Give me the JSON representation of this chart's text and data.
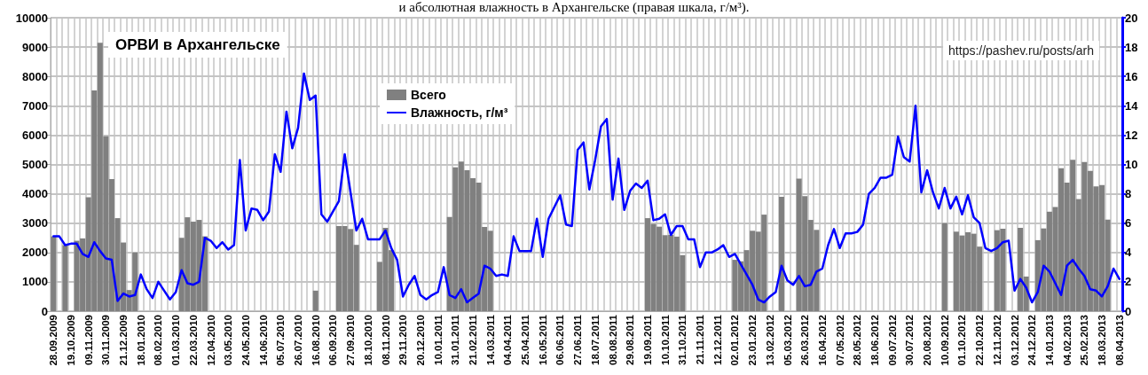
{
  "chart_data": {
    "type": "bar",
    "title": "ОРВИ в Архангельске",
    "subtitle": "и абсолютная влажность в Архангельске (правая шкала, г/м³).",
    "annotations": [
      "https://pashev.ru/posts/arh"
    ],
    "categories": [
      "28.09.2009",
      null,
      null,
      "19.10.2009",
      null,
      null,
      "09.11.2009",
      null,
      null,
      "30.11.2009",
      null,
      null,
      "21.12.2009",
      null,
      null,
      "18.01.2010",
      null,
      null,
      "08.02.2010",
      null,
      null,
      "01.03.2010",
      null,
      null,
      "22.03.2010",
      null,
      null,
      "12.04.2010",
      null,
      null,
      "03.05.2010",
      null,
      null,
      "24.05.2010",
      null,
      null,
      "14.06.2010",
      null,
      null,
      "05.07.2010",
      null,
      null,
      "26.07.2010",
      null,
      null,
      "16.08.2010",
      null,
      null,
      "06.09.2010",
      null,
      null,
      "27.09.2010",
      null,
      null,
      "18.10.2010",
      null,
      null,
      "08.11.2010",
      null,
      null,
      "29.11.2010",
      null,
      null,
      "20.12.2010",
      null,
      null,
      "10.01.2011",
      null,
      null,
      "31.01.2011",
      null,
      null,
      "21.02.2011",
      null,
      null,
      "14.03.2011",
      null,
      null,
      "04.04.2011",
      null,
      null,
      "25.04.2011",
      null,
      null,
      "16.05.2011",
      null,
      null,
      "06.06.2011",
      null,
      null,
      "27.06.2011",
      null,
      null,
      "18.07.2011",
      null,
      null,
      "08.08.2011",
      null,
      null,
      "29.08.2011",
      null,
      null,
      "19.09.2011",
      null,
      null,
      "10.10.2011",
      null,
      null,
      "31.10.2011",
      null,
      null,
      "21.11.2011",
      null,
      null,
      "12.12.2011",
      null,
      null,
      "02.01.2012",
      null,
      null,
      "23.01.2012",
      null,
      null,
      "13.02.2012",
      null,
      null,
      "05.03.2012",
      null,
      null,
      "26.03.2012",
      null,
      null,
      "16.04.2012",
      null,
      null,
      "07.05.2012",
      null,
      null,
      "28.05.2012",
      null,
      null,
      "18.06.2012",
      null,
      null,
      "09.07.2012",
      null,
      null,
      "30.07.2012",
      null,
      null,
      "20.08.2012",
      null,
      null,
      "10.09.2012",
      null,
      null,
      "01.10.2012",
      null,
      null,
      "22.10.2012",
      null,
      null,
      "12.11.2012",
      null,
      null,
      "03.12.2012",
      null,
      null,
      "24.12.2012",
      null,
      null,
      "14.01.2013",
      null,
      null,
      "04.02.2013",
      null,
      null,
      "25.02.2013",
      null,
      null,
      "18.03.2013",
      null,
      null,
      "08.04.2013"
    ],
    "series": [
      {
        "name": "Всего",
        "color": "#808080",
        "values": [
          2550,
          null,
          2250,
          null,
          2400,
          2480,
          3880,
          7520,
          9150,
          5960,
          4500,
          3170,
          2340,
          720,
          2000,
          null,
          null,
          null,
          null,
          null,
          null,
          null,
          2500,
          3200,
          3050,
          3110,
          2550,
          null,
          null,
          null,
          null,
          null,
          null,
          null,
          null,
          null,
          null,
          null,
          null,
          null,
          null,
          null,
          null,
          null,
          null,
          700,
          null,
          null,
          null,
          2900,
          2900,
          2800,
          2260,
          null,
          null,
          null,
          1680,
          2840,
          2080,
          null,
          null,
          null,
          null,
          null,
          null,
          null,
          null,
          null,
          3210,
          4900,
          5100,
          4800,
          4530,
          4380,
          2870,
          2740,
          null,
          null,
          null,
          null,
          null,
          null,
          null,
          null,
          null,
          null,
          null,
          null,
          null,
          null,
          null,
          null,
          null,
          null,
          null,
          null,
          null,
          null,
          null,
          null,
          null,
          null,
          3170,
          2970,
          2880,
          2590,
          2600,
          2540,
          1910,
          null,
          null,
          null,
          null,
          null,
          null,
          null,
          null,
          1750,
          1700,
          2080,
          2740,
          2710,
          3290,
          null,
          null,
          3900,
          null,
          null,
          4520,
          3920,
          3110,
          2770,
          null,
          null,
          null,
          null,
          null,
          null,
          null,
          null,
          null,
          null,
          null,
          null,
          null,
          null,
          null,
          null,
          null,
          null,
          null,
          null,
          null,
          3000,
          null,
          2710,
          2580,
          2690,
          2640,
          2200,
          null,
          null,
          2760,
          2810,
          null,
          null,
          2840,
          1180,
          null,
          2420,
          2820,
          3390,
          3550,
          4870,
          4380,
          5160,
          3820,
          5080,
          4780,
          4250,
          4300,
          3120,
          null,
          null
        ]
      },
      {
        "name": "Влажность, г/м³",
        "type": "line",
        "axis": "y2",
        "color": "#0000ff",
        "values": [
          5.1,
          5.1,
          4.5,
          4.6,
          4.6,
          3.9,
          3.7,
          4.7,
          4.1,
          3.6,
          3.5,
          0.7,
          1.2,
          1.0,
          1.1,
          2.5,
          1.5,
          0.9,
          2.0,
          1.4,
          0.8,
          1.3,
          2.8,
          1.9,
          1.8,
          2.0,
          5.0,
          4.8,
          4.3,
          4.7,
          4.2,
          4.5,
          10.3,
          5.5,
          7.0,
          6.9,
          6.2,
          6.8,
          10.7,
          9.5,
          13.6,
          11.1,
          12.5,
          16.2,
          14.4,
          14.7,
          6.6,
          6.1,
          6.8,
          7.5,
          10.7,
          8.1,
          5.5,
          6.3,
          4.9,
          4.9,
          4.9,
          5.5,
          4.3,
          3.5,
          1.0,
          1.8,
          2.4,
          1.1,
          0.8,
          1.1,
          1.3,
          3.0,
          1.1,
          0.9,
          1.5,
          0.6,
          0.9,
          1.2,
          3.1,
          2.9,
          2.4,
          2.5,
          2.4,
          5.1,
          4.1,
          4.1,
          4.1,
          6.3,
          3.7,
          6.3,
          7.1,
          7.9,
          5.9,
          5.8,
          11.0,
          11.5,
          8.3,
          10.3,
          12.6,
          13.1,
          7.6,
          10.4,
          6.9,
          8.2,
          8.7,
          8.4,
          8.9,
          6.2,
          6.3,
          6.6,
          5.2,
          5.8,
          5.8,
          4.9,
          4.9,
          3.0,
          4.0,
          4.0,
          4.2,
          4.5,
          3.7,
          3.9,
          3.2,
          2.5,
          1.8,
          0.8,
          0.6,
          1.0,
          1.3,
          3.1,
          2.1,
          1.8,
          2.4,
          1.7,
          1.8,
          2.7,
          2.9,
          4.5,
          5.6,
          4.3,
          5.3,
          5.3,
          5.4,
          5.9,
          8.0,
          8.4,
          9.1,
          9.1,
          9.3,
          11.9,
          10.5,
          10.2,
          14.0,
          8.1,
          9.6,
          8.1,
          7.0,
          8.4,
          7.0,
          7.8,
          6.6,
          7.9,
          6.4,
          6.0,
          4.3,
          4.1,
          4.3,
          4.7,
          4.8,
          1.4,
          2.2,
          1.6,
          0.6,
          1.3,
          3.1,
          2.7,
          1.9,
          1.1,
          3.1,
          3.5,
          2.9,
          2.4,
          1.5,
          1.4,
          1.0,
          1.7,
          2.9,
          2.2
        ]
      }
    ],
    "ylim": [
      0,
      10000
    ],
    "yticks": [
      0,
      1000,
      2000,
      3000,
      4000,
      5000,
      6000,
      7000,
      8000,
      9000,
      10000
    ],
    "y2lim": [
      0,
      20
    ],
    "y2ticks": [
      0,
      2,
      4,
      6,
      8,
      10,
      12,
      14,
      16,
      18,
      20
    ],
    "grid": true,
    "legend": "top",
    "marker": "none",
    "line_style": "solid"
  }
}
